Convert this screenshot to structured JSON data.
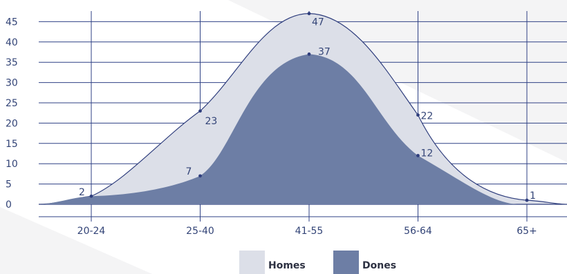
{
  "colors": {
    "background": "#f4f4f5",
    "background_accent": "#ffffff",
    "grid": "#2f4185",
    "axis_text": "#334477",
    "homes_fill": "#dcdfe8",
    "homes_stroke": "#2f3e7d",
    "dones_fill": "#6d7ea5",
    "legend_text": "#2d3142"
  },
  "chart_data": {
    "type": "area",
    "categories": [
      "20-24",
      "25-40",
      "41-55",
      "56-64",
      "65+"
    ],
    "series": [
      {
        "name": "Homes",
        "values": [
          2,
          23,
          47,
          22,
          1
        ],
        "color": "#dcdfe8",
        "stroke": "#2f3e7d"
      },
      {
        "name": "Dones",
        "values": [
          2,
          7,
          37,
          12,
          0
        ],
        "color": "#6d7ea5",
        "stroke": "none"
      }
    ],
    "yticks": [
      0,
      5,
      10,
      15,
      20,
      25,
      30,
      35,
      40,
      45
    ],
    "ylim": [
      0,
      48
    ],
    "grid": true,
    "legend": "bottom",
    "title": "",
    "xlabel": "",
    "ylabel": ""
  }
}
